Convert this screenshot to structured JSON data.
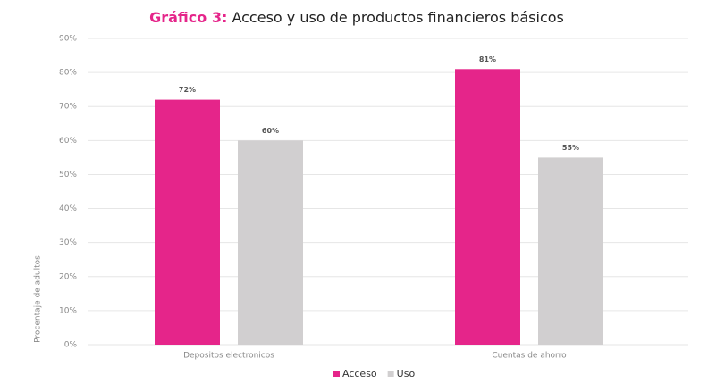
{
  "chart_data": {
    "type": "bar",
    "title_label": "Gráfico 3:",
    "title": "Acceso y uso de productos financieros básicos",
    "y_label": "Procentaje de adultos",
    "categories": [
      "Depositos electronicos",
      "Cuentas de ahorro"
    ],
    "series": [
      {
        "name": "Acceso",
        "color": "#e5258a",
        "values": [
          72,
          81
        ],
        "value_labels": [
          "72%",
          "81%"
        ]
      },
      {
        "name": "Uso",
        "color": "#d1cfd0",
        "values": [
          60,
          55
        ],
        "value_labels": [
          "60%",
          "55%"
        ]
      }
    ],
    "ylim": [
      0,
      90
    ],
    "yticks": [
      {
        "value": 0,
        "label": "0%"
      },
      {
        "value": 10,
        "label": "10%"
      },
      {
        "value": 20,
        "label": "20%"
      },
      {
        "value": 30,
        "label": "30%"
      },
      {
        "value": 40,
        "label": "40%"
      },
      {
        "value": 50,
        "label": "50%"
      },
      {
        "value": 60,
        "label": "60%"
      },
      {
        "value": 70,
        "label": "70%"
      },
      {
        "value": 80,
        "label": "80%"
      },
      {
        "value": 90,
        "label": "90%"
      }
    ],
    "grid": true
  }
}
